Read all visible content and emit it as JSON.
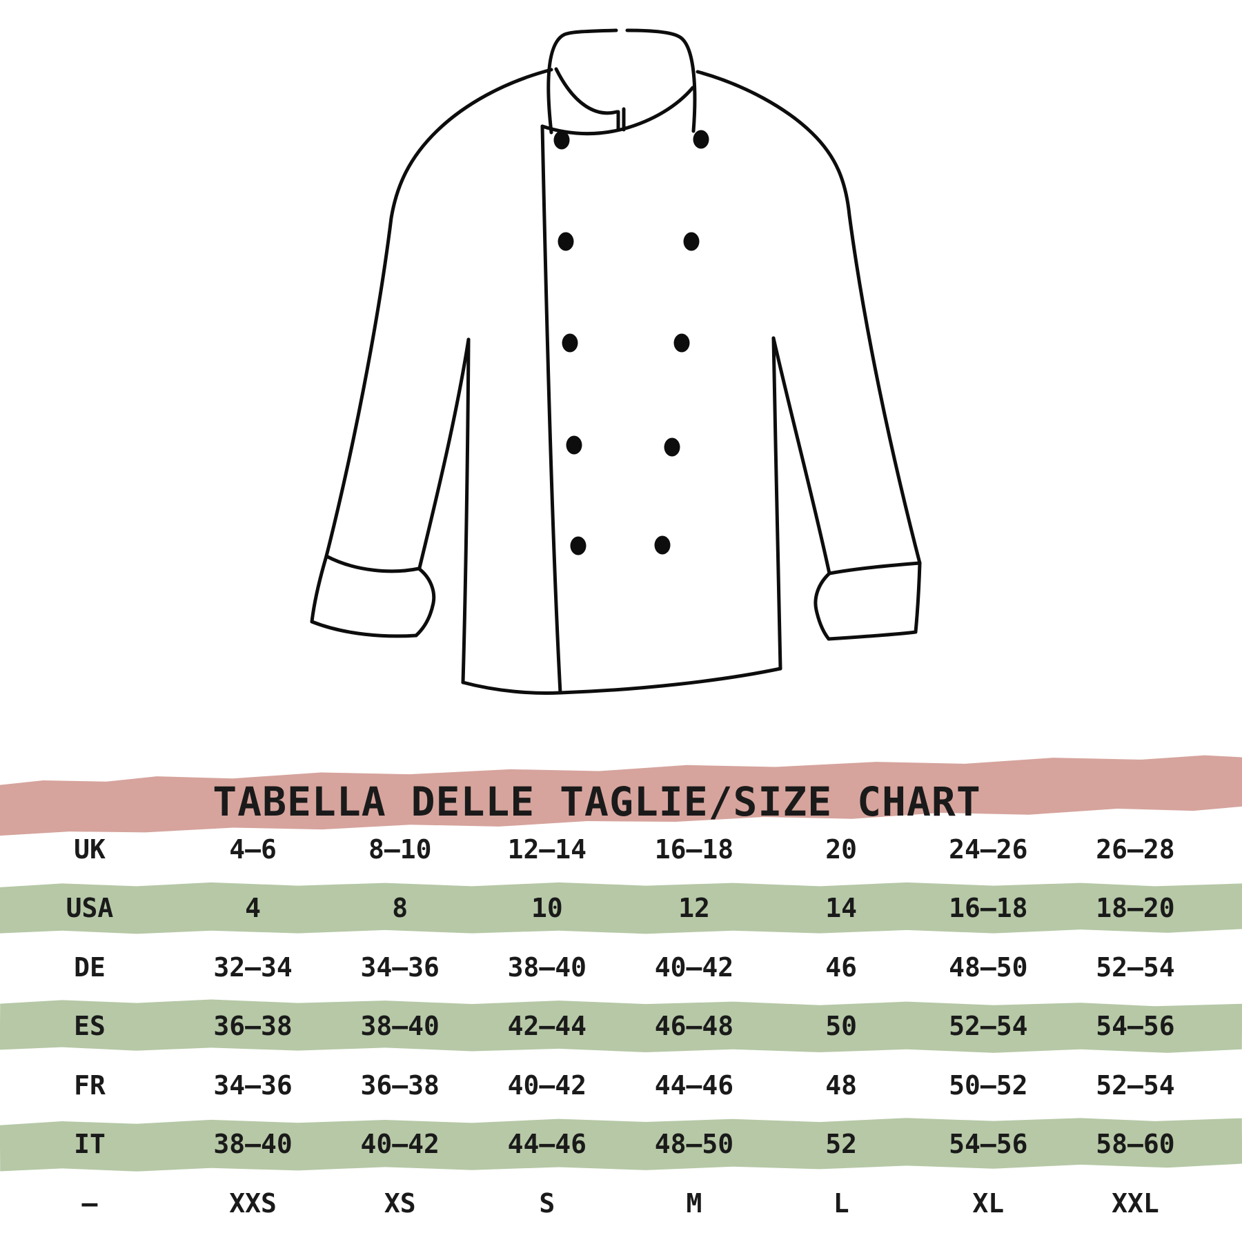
{
  "title": "TABELLA DELLE TAGLIE/SIZE CHART",
  "illustration": "chef-jacket-line-drawing",
  "colors": {
    "banner_pink": "#d6a49d",
    "row_green": "#b6c8a6",
    "text": "#1a1a1a",
    "line": "#0d0d0d"
  },
  "size_table": {
    "rows": [
      {
        "label": "UK",
        "highlight": false,
        "values": [
          "4–6",
          "8–10",
          "12–14",
          "16–18",
          "20",
          "24–26",
          "26–28"
        ]
      },
      {
        "label": "USA",
        "highlight": true,
        "values": [
          "4",
          "8",
          "10",
          "12",
          "14",
          "16–18",
          "18–20"
        ]
      },
      {
        "label": "DE",
        "highlight": false,
        "values": [
          "32–34",
          "34–36",
          "38–40",
          "40–42",
          "46",
          "48–50",
          "52–54"
        ]
      },
      {
        "label": "ES",
        "highlight": true,
        "values": [
          "36–38",
          "38–40",
          "42–44",
          "46–48",
          "50",
          "52–54",
          "54–56"
        ]
      },
      {
        "label": "FR",
        "highlight": false,
        "values": [
          "34–36",
          "36–38",
          "40–42",
          "44–46",
          "48",
          "50–52",
          "52–54"
        ]
      },
      {
        "label": "IT",
        "highlight": true,
        "values": [
          "38–40",
          "40–42",
          "44–46",
          "48–50",
          "52",
          "54–56",
          "58–60"
        ]
      },
      {
        "label": "–",
        "highlight": false,
        "values": [
          "XXS",
          "XS",
          "S",
          "M",
          "L",
          "XL",
          "XXL"
        ]
      }
    ]
  }
}
